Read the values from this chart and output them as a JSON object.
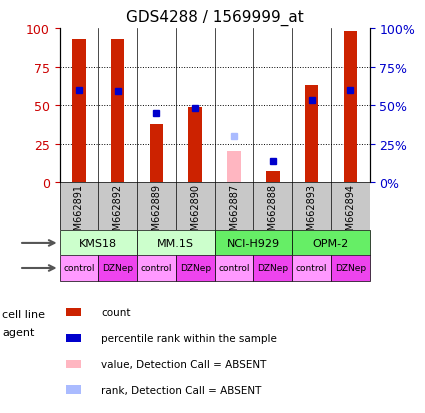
{
  "title": "GDS4288 / 1569999_at",
  "samples": [
    "GSM662891",
    "GSM662892",
    "GSM662889",
    "GSM662890",
    "GSM662887",
    "GSM662888",
    "GSM662893",
    "GSM662894"
  ],
  "count_values": [
    93,
    93,
    38,
    49,
    null,
    7,
    63,
    98
  ],
  "percentile_values": [
    60,
    59,
    45,
    48,
    null,
    14,
    53,
    60
  ],
  "absent_count": [
    null,
    null,
    null,
    null,
    20,
    null,
    null,
    null
  ],
  "absent_percentile": [
    null,
    null,
    null,
    null,
    30,
    null,
    null,
    null
  ],
  "cell_lines": [
    {
      "name": "KMS18",
      "span": [
        0,
        2
      ],
      "color": "#CCFFCC"
    },
    {
      "name": "MM.1S",
      "span": [
        2,
        4
      ],
      "color": "#CCFFCC"
    },
    {
      "name": "NCI-H929",
      "span": [
        4,
        6
      ],
      "color": "#66EE66"
    },
    {
      "name": "OPM-2",
      "span": [
        6,
        8
      ],
      "color": "#66EE66"
    }
  ],
  "agents": [
    "control",
    "DZNep",
    "control",
    "DZNep",
    "control",
    "DZNep",
    "control",
    "DZNep"
  ],
  "control_color": "#FF99FF",
  "dznep_color": "#EE44EE",
  "bar_color": "#CC2200",
  "percentile_color": "#0000CC",
  "absent_bar_color": "#FFB6C1",
  "absent_percentile_color": "#AABBFF",
  "tick_label_color_left": "#CC0000",
  "tick_label_color_right": "#0000CC",
  "bg_color": "#FFFFFF",
  "sample_bg_color": "#C8C8C8",
  "ylim": [
    0,
    100
  ],
  "yticks": [
    0,
    25,
    50,
    75,
    100
  ],
  "bar_width": 0.35,
  "legend_items": [
    {
      "color": "#CC2200",
      "label": "count"
    },
    {
      "color": "#0000CC",
      "label": "percentile rank within the sample"
    },
    {
      "color": "#FFB6C1",
      "label": "value, Detection Call = ABSENT"
    },
    {
      "color": "#AABBFF",
      "label": "rank, Detection Call = ABSENT"
    }
  ]
}
